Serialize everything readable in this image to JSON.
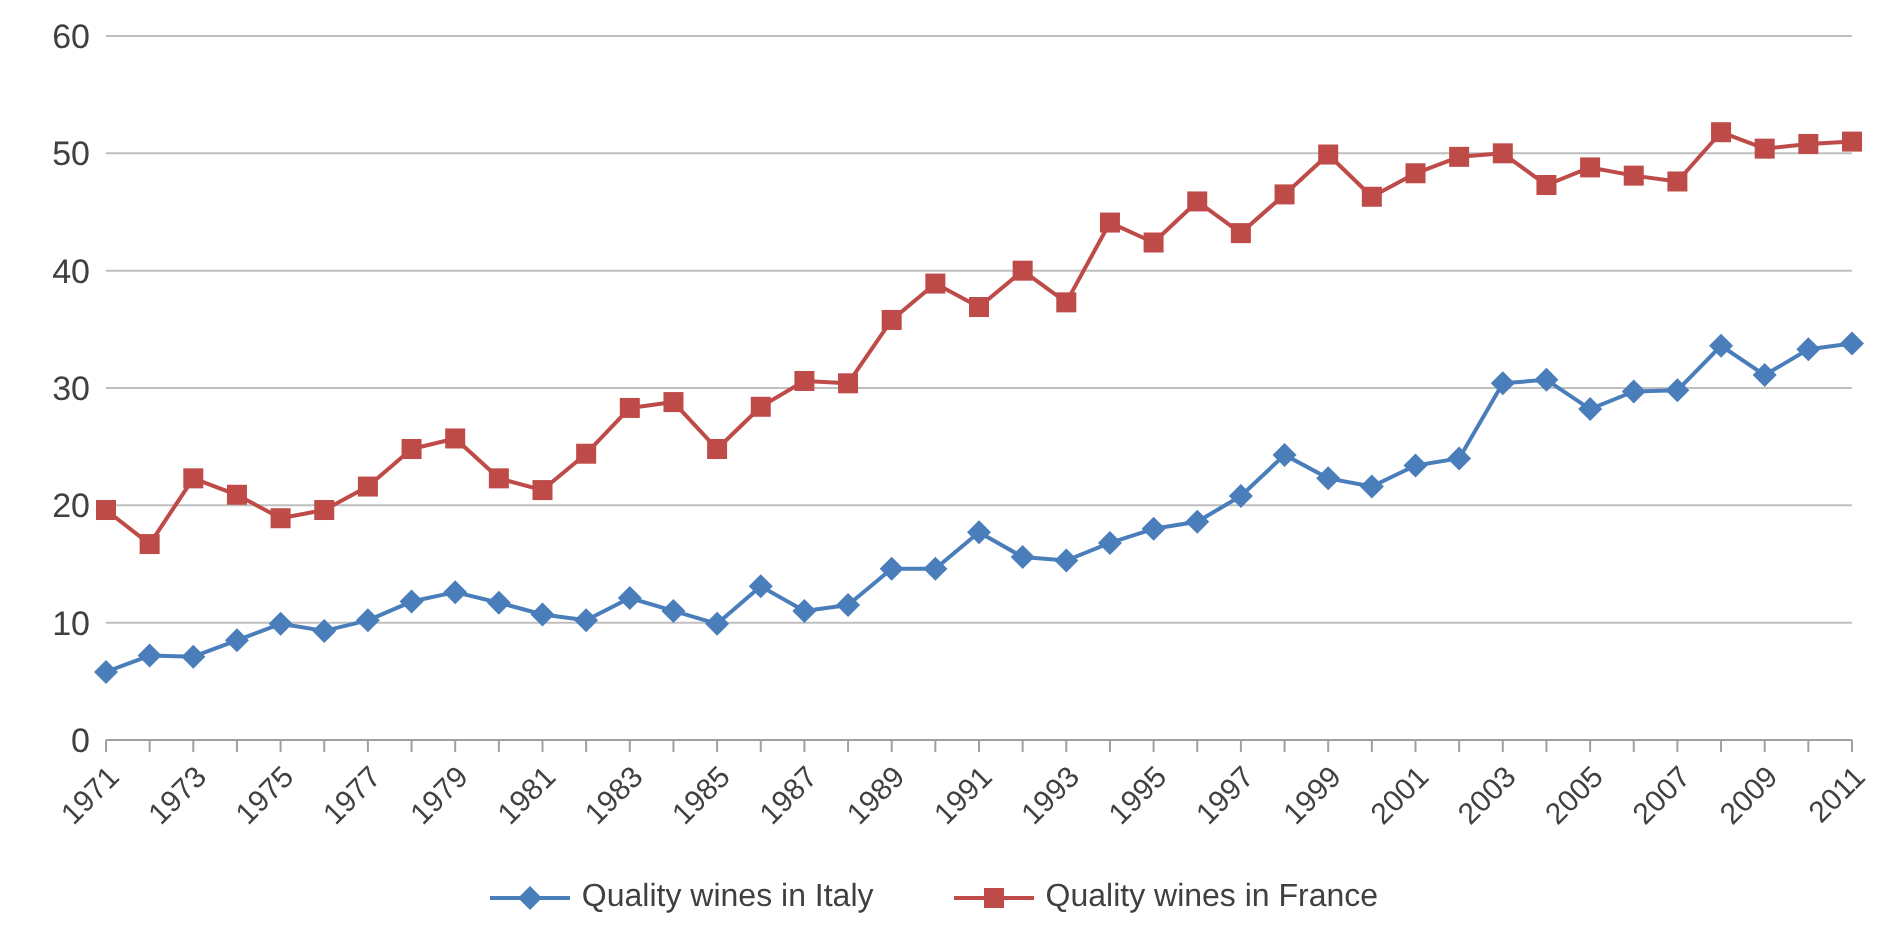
{
  "chart_data": {
    "type": "line",
    "categories": [
      "1971",
      null,
      "1973",
      null,
      "1975",
      null,
      "1977",
      null,
      "1979",
      null,
      "1981",
      null,
      "1983",
      null,
      "1985",
      null,
      "1987",
      null,
      "1989",
      null,
      "1991",
      null,
      "1993",
      null,
      "1995",
      null,
      "1997",
      null,
      "1999",
      null,
      "2001",
      null,
      "2003",
      null,
      "2005",
      null,
      "2007",
      null,
      "2009",
      null,
      "2011"
    ],
    "series": [
      {
        "name": "Quality wines in Italy",
        "color": "#4a7ebb",
        "marker": "diamond",
        "values": [
          5.8,
          7.2,
          7.1,
          8.5,
          9.9,
          9.3,
          10.2,
          11.8,
          12.6,
          11.7,
          10.7,
          10.2,
          12.1,
          11.0,
          9.9,
          13.1,
          11.0,
          11.5,
          14.6,
          14.6,
          17.7,
          15.6,
          15.3,
          16.8,
          18.0,
          18.6,
          20.8,
          24.3,
          22.3,
          21.6,
          23.4,
          24.0,
          30.4,
          30.7,
          28.2,
          29.7,
          29.8,
          33.6,
          31.1,
          33.3,
          33.8
        ]
      },
      {
        "name": "Quality wines in France",
        "color": "#be4b48",
        "marker": "square",
        "values": [
          19.6,
          16.7,
          22.3,
          20.9,
          18.9,
          19.6,
          21.6,
          24.8,
          25.7,
          22.3,
          21.3,
          24.4,
          28.3,
          28.8,
          24.8,
          28.4,
          30.6,
          30.4,
          35.8,
          38.9,
          36.9,
          40.0,
          37.3,
          44.1,
          42.4,
          45.9,
          43.2,
          46.5,
          49.9,
          46.3,
          48.3,
          49.7,
          50.0,
          47.3,
          48.8,
          48.1,
          47.6,
          51.8,
          50.4,
          50.8,
          51.0
        ]
      }
    ],
    "ylim": [
      0,
      60
    ],
    "yticks": [
      0,
      10,
      20,
      30,
      40,
      50,
      60
    ],
    "grid": "y",
    "legend": "bottom",
    "line_style": "solid"
  }
}
